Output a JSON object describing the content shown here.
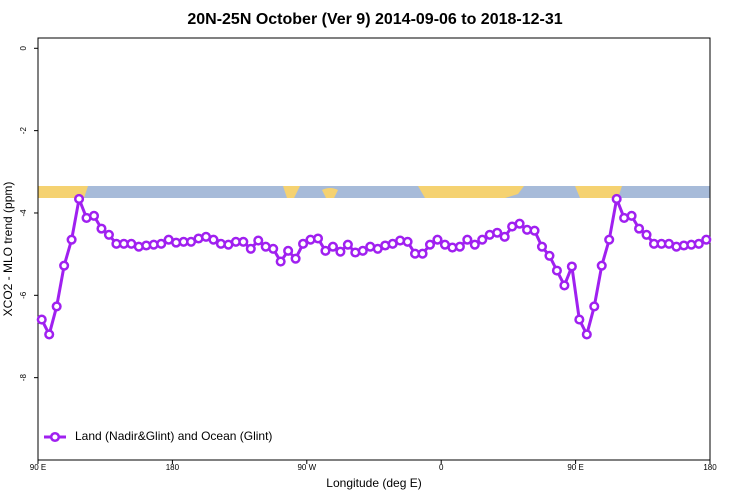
{
  "chart_data": {
    "type": "line",
    "title": "20N-25N October (Ver 9)   2014-09-06 to 2018-12-31",
    "x_label": "Longitude (deg E)",
    "y_label": "XCO2 - MLO trend (ppm)",
    "x": [
      92.5,
      97.5,
      102.5,
      107.5,
      112.5,
      117.5,
      122.5,
      127.5,
      132.5,
      137.5,
      142.5,
      147.5,
      152.5,
      157.5,
      162.5,
      167.5,
      172.5,
      177.5,
      182.5,
      187.5,
      192.5,
      197.5,
      202.5,
      207.5,
      212.5,
      217.5,
      222.5,
      227.5,
      232.5,
      237.5,
      242.5,
      247.5,
      252.5,
      257.5,
      262.5,
      267.5,
      272.5,
      277.5,
      282.5,
      287.5,
      292.5,
      297.5,
      302.5,
      307.5,
      312.5,
      317.5,
      322.5,
      327.5,
      332.5,
      337.5,
      342.5,
      347.5,
      352.5,
      357.5,
      362.5,
      367.5,
      372.5,
      377.5,
      382.5,
      387.5,
      392.5,
      397.5,
      402.5,
      407.5,
      412.5,
      417.5,
      422.5,
      427.5,
      432.5,
      437.5,
      442.5,
      447.5,
      452.5,
      457.5,
      462.5,
      467.5,
      472.5,
      477.5,
      482.5,
      487.5,
      492.5,
      497.5,
      502.5,
      507.5,
      512.5,
      517.5,
      522.5,
      527.5,
      532.5,
      537.5
    ],
    "series": [
      {
        "name": "Land (Nadir&Glint) and Ocean (Glint)",
        "color": "#a020f0",
        "values": [
          -6.59,
          -6.95,
          -6.27,
          -5.28,
          -4.65,
          -3.66,
          -4.12,
          -4.07,
          -4.38,
          -4.53,
          -4.75,
          -4.75,
          -4.75,
          -4.82,
          -4.79,
          -4.77,
          -4.75,
          -4.65,
          -4.72,
          -4.7,
          -4.7,
          -4.62,
          -4.58,
          -4.65,
          -4.75,
          -4.77,
          -4.7,
          -4.7,
          -4.87,
          -4.67,
          -4.82,
          -4.87,
          -5.18,
          -4.92,
          -5.11,
          -4.75,
          -4.65,
          -4.62,
          -4.92,
          -4.82,
          -4.94,
          -4.77,
          -4.96,
          -4.92,
          -4.82,
          -4.87,
          -4.79,
          -4.75,
          -4.67,
          -4.7,
          -4.99,
          -4.99,
          -4.77,
          -4.65,
          -4.77,
          -4.84,
          -4.82,
          -4.65,
          -4.77,
          -4.65,
          -4.53,
          -4.48,
          -4.58,
          -4.33,
          -4.26,
          -4.41,
          -4.43,
          -4.82,
          -5.04,
          -5.4,
          -5.76,
          -5.3,
          -6.59,
          -6.95,
          -6.27,
          -5.28,
          -4.65,
          -3.66,
          -4.12,
          -4.07,
          -4.38,
          -4.53,
          -4.75,
          -4.75,
          -4.75,
          -4.82,
          -4.79,
          -4.77,
          -4.75,
          -4.65
        ]
      }
    ],
    "xlim": [
      90,
      540
    ],
    "xticks": [
      {
        "value": 90,
        "label": "90 E"
      },
      180,
      {
        "value": 270,
        "label": "90 W"
      },
      {
        "value": 360,
        "label": "0"
      },
      {
        "value": 450,
        "label": "90 E"
      },
      {
        "value": 540,
        "label": "180"
      }
    ],
    "ylim": [
      -10,
      0.25
    ],
    "yticks": [
      0,
      -2,
      -4,
      -6,
      -8
    ],
    "legend": "bottom-left"
  }
}
